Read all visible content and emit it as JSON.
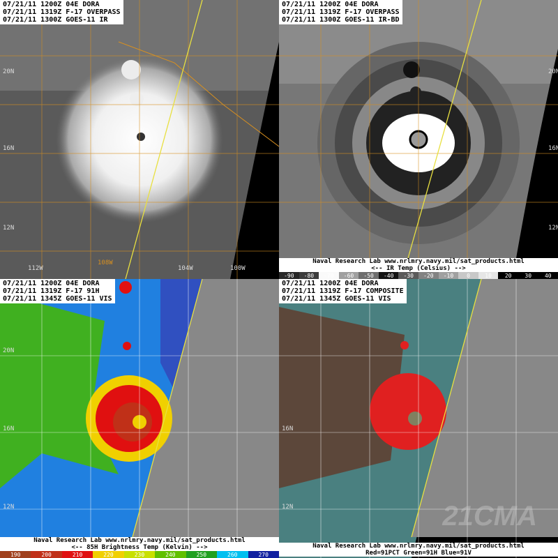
{
  "panels": [
    {
      "header": [
        "07/21/11 1200Z 04E DORA",
        "07/21/11 1319Z F-17 OVERPASS",
        "07/21/11 1300Z GOES-11 IR"
      ]
    },
    {
      "header": [
        "07/21/11 1200Z 04E DORA",
        "07/21/11 1319Z F-17 OVERPASS",
        "07/21/11 1300Z GOES-11 IR-BD"
      ],
      "legend": [
        "Naval Research Lab  www.nrlmry.navy.mil/sat_products.html",
        "<--   IR Temp (Celsius)   -->"
      ],
      "colorbar": [
        "-90",
        "-80",
        "-70",
        "-60",
        "-50",
        "-40",
        "-30",
        "-20",
        "-10",
        "0",
        "10",
        "20",
        "30",
        "40"
      ]
    },
    {
      "header": [
        "07/21/11 1200Z 04E DORA",
        "07/21/11 1319Z F-17 91H",
        "07/21/11 1345Z GOES-11 VIS"
      ],
      "legend": [
        "Naval Research Lab  www.nrlmry.navy.mil/sat_products.html",
        "<--   85H Brightness Temp (Kelvin)   -->"
      ],
      "colorbar": [
        "190",
        "200",
        "210",
        "220",
        "230",
        "240",
        "250",
        "260",
        "270"
      ],
      "colorbar_colors": [
        "#a0401c",
        "#c03018",
        "#e01010",
        "#f0d000",
        "#c8e000",
        "#60c000",
        "#20a020",
        "#00c0f0",
        "#1020a0"
      ]
    },
    {
      "header": [
        "07/21/11 1200Z 04E DORA",
        "07/21/11 1319Z F-17 COMPOSITE",
        "07/21/11 1345Z GOES-11 VIS"
      ],
      "legend": [
        "Naval Research Lab  www.nrlmry.navy.mil/sat_products.html",
        "Red=91PCT  Green=91H  Blue=91V"
      ]
    }
  ],
  "lat_labels": [
    "20N",
    "16N",
    "12N"
  ],
  "lon_labels": [
    "112W",
    "108W",
    "104W",
    "100W"
  ],
  "watermark": "21CMA",
  "colors": {
    "grid_orange": "#d89020",
    "swath_line": "#e8e040",
    "grid_white": "#ffffff"
  }
}
